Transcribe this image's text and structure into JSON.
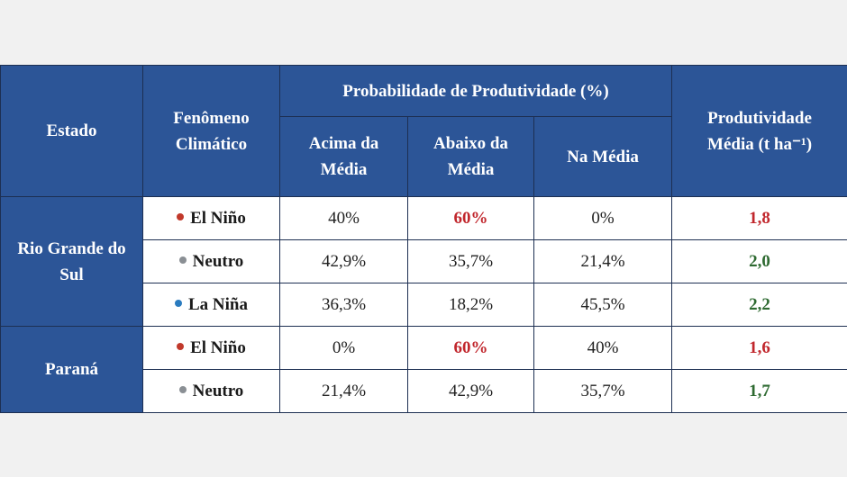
{
  "header": {
    "estado": "Estado",
    "fenomeno": "Fenômeno Climático",
    "probabilidade": "Probabilidade de Produtividade (%)",
    "acima": "Acima da Média",
    "abaixo": "Abaixo da Média",
    "na_media": "Na Média",
    "produtividade": "Produtividade Média (t ha⁻¹)"
  },
  "colors": {
    "header_bg": "#2c5597",
    "el_nino": "#c1392b",
    "neutro": "#8a8f94",
    "la_nina": "#2a7bbf",
    "highlight_red": "#c1272d",
    "highlight_green": "#2e6a31"
  },
  "groups": [
    {
      "estado": "Rio Grande do Sul",
      "rows": [
        {
          "fenomeno": "El Niño",
          "dot": "el_nino",
          "acima": "40%",
          "abaixo": "60%",
          "abaixo_highlight": true,
          "na_media": "0%",
          "produtividade": "1,8",
          "prod_color": "red"
        },
        {
          "fenomeno": "Neutro",
          "dot": "neutro",
          "acima": "42,9%",
          "abaixo": "35,7%",
          "abaixo_highlight": false,
          "na_media": "21,4%",
          "produtividade": "2,0",
          "prod_color": "green"
        },
        {
          "fenomeno": "La Niña",
          "dot": "la_nina",
          "acima": "36,3%",
          "abaixo": "18,2%",
          "abaixo_highlight": false,
          "na_media": "45,5%",
          "produtividade": "2,2",
          "prod_color": "green"
        }
      ]
    },
    {
      "estado": "Paraná",
      "rows": [
        {
          "fenomeno": "El Niño",
          "dot": "el_nino",
          "acima": "0%",
          "abaixo": "60%",
          "abaixo_highlight": true,
          "na_media": "40%",
          "produtividade": "1,6",
          "prod_color": "red"
        },
        {
          "fenomeno": "Neutro",
          "dot": "neutro",
          "acima": "21,4%",
          "abaixo": "42,9%",
          "abaixo_highlight": false,
          "na_media": "35,7%",
          "produtividade": "1,7",
          "prod_color": "green"
        }
      ]
    }
  ]
}
